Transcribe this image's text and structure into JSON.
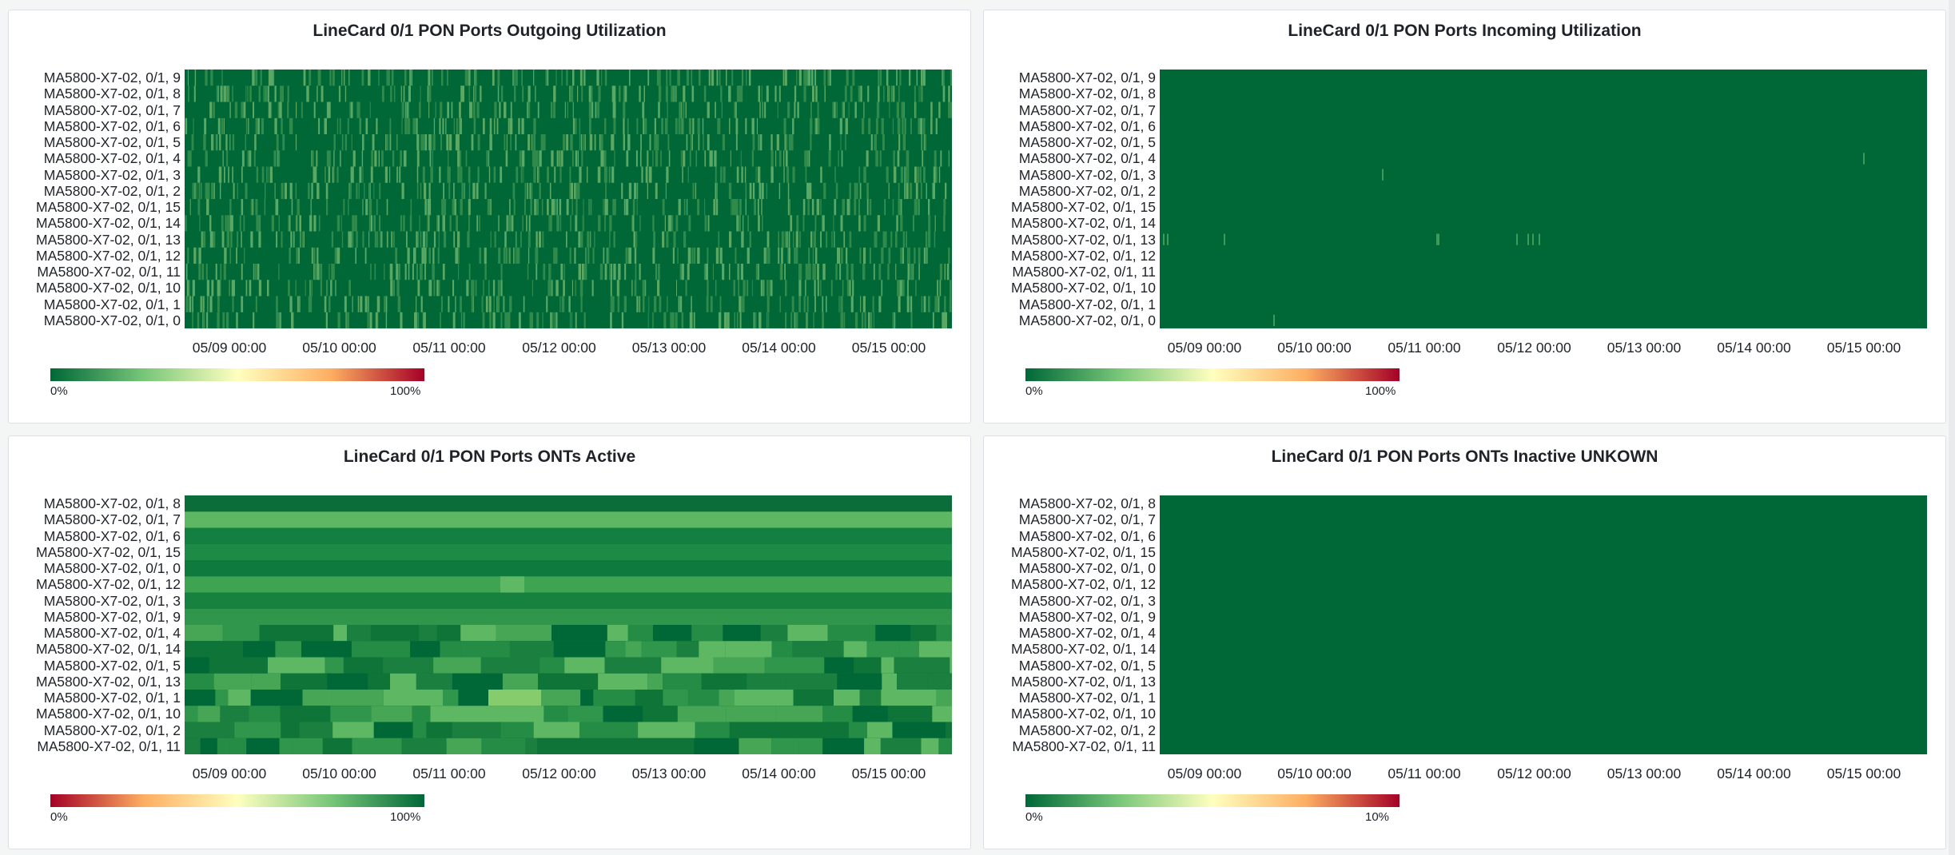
{
  "time_ticks": [
    "05/09 00:00",
    "05/10 00:00",
    "05/11 00:00",
    "05/12 00:00",
    "05/13 00:00",
    "05/14 00:00",
    "05/15 00:00"
  ],
  "colors": {
    "dark_green": "#006837",
    "mid_green": "#1a9641",
    "light_green": "#78c679",
    "yellow": "#ffffbf",
    "orange": "#fdae61",
    "red": "#a50026"
  },
  "panels": [
    {
      "title": "LineCard 0/1 PON Ports Outgoing Utilization",
      "rows": [
        "MA5800-X7-02, 0/1, 9",
        "MA5800-X7-02, 0/1, 8",
        "MA5800-X7-02, 0/1, 7",
        "MA5800-X7-02, 0/1, 6",
        "MA5800-X7-02, 0/1, 5",
        "MA5800-X7-02, 0/1, 4",
        "MA5800-X7-02, 0/1, 3",
        "MA5800-X7-02, 0/1, 2",
        "MA5800-X7-02, 0/1, 15",
        "MA5800-X7-02, 0/1, 14",
        "MA5800-X7-02, 0/1, 13",
        "MA5800-X7-02, 0/1, 12",
        "MA5800-X7-02, 0/1, 11",
        "MA5800-X7-02, 0/1, 10",
        "MA5800-X7-02, 0/1, 1",
        "MA5800-X7-02, 0/1, 0"
      ],
      "legend": {
        "min": "0%",
        "max": "100%",
        "scale": "green-to-red"
      },
      "pattern": "noisy"
    },
    {
      "title": "LineCard 0/1 PON Ports Incoming Utilization",
      "rows": [
        "MA5800-X7-02, 0/1, 9",
        "MA5800-X7-02, 0/1, 8",
        "MA5800-X7-02, 0/1, 7",
        "MA5800-X7-02, 0/1, 6",
        "MA5800-X7-02, 0/1, 5",
        "MA5800-X7-02, 0/1, 4",
        "MA5800-X7-02, 0/1, 3",
        "MA5800-X7-02, 0/1, 2",
        "MA5800-X7-02, 0/1, 15",
        "MA5800-X7-02, 0/1, 14",
        "MA5800-X7-02, 0/1, 13",
        "MA5800-X7-02, 0/1, 12",
        "MA5800-X7-02, 0/1, 11",
        "MA5800-X7-02, 0/1, 10",
        "MA5800-X7-02, 0/1, 1",
        "MA5800-X7-02, 0/1, 0"
      ],
      "legend": {
        "min": "0%",
        "max": "100%",
        "scale": "green-to-red"
      },
      "pattern": "flat"
    },
    {
      "title": "LineCard 0/1 PON Ports ONTs Active",
      "rows": [
        "MA5800-X7-02, 0/1, 8",
        "MA5800-X7-02, 0/1, 7",
        "MA5800-X7-02, 0/1, 6",
        "MA5800-X7-02, 0/1, 15",
        "MA5800-X7-02, 0/1, 0",
        "MA5800-X7-02, 0/1, 12",
        "MA5800-X7-02, 0/1, 3",
        "MA5800-X7-02, 0/1, 9",
        "MA5800-X7-02, 0/1, 4",
        "MA5800-X7-02, 0/1, 14",
        "MA5800-X7-02, 0/1, 5",
        "MA5800-X7-02, 0/1, 13",
        "MA5800-X7-02, 0/1, 1",
        "MA5800-X7-02, 0/1, 10",
        "MA5800-X7-02, 0/1, 2",
        "MA5800-X7-02, 0/1, 11"
      ],
      "legend": {
        "min": "0%",
        "max": "100%",
        "scale": "red-to-green"
      },
      "pattern": "blocky"
    },
    {
      "title": "LineCard 0/1 PON Ports ONTs Inactive UNKOWN",
      "rows": [
        "MA5800-X7-02, 0/1, 8",
        "MA5800-X7-02, 0/1, 7",
        "MA5800-X7-02, 0/1, 6",
        "MA5800-X7-02, 0/1, 15",
        "MA5800-X7-02, 0/1, 0",
        "MA5800-X7-02, 0/1, 12",
        "MA5800-X7-02, 0/1, 3",
        "MA5800-X7-02, 0/1, 9",
        "MA5800-X7-02, 0/1, 4",
        "MA5800-X7-02, 0/1, 14",
        "MA5800-X7-02, 0/1, 5",
        "MA5800-X7-02, 0/1, 13",
        "MA5800-X7-02, 0/1, 1",
        "MA5800-X7-02, 0/1, 10",
        "MA5800-X7-02, 0/1, 2",
        "MA5800-X7-02, 0/1, 11"
      ],
      "legend": {
        "min": "0%",
        "max": "10%",
        "scale": "green-to-red"
      },
      "pattern": "solid"
    }
  ],
  "chart_data": [
    {
      "type": "heatmap",
      "title": "LineCard 0/1 PON Ports Outgoing Utilization",
      "x_range": [
        "05/08",
        "05/15"
      ],
      "value_range": [
        0,
        100
      ],
      "unit": "%"
    },
    {
      "type": "heatmap",
      "title": "LineCard 0/1 PON Ports Incoming Utilization",
      "x_range": [
        "05/08",
        "05/15"
      ],
      "value_range": [
        0,
        100
      ],
      "unit": "%"
    },
    {
      "type": "heatmap",
      "title": "LineCard 0/1 PON Ports ONTs Active",
      "x_range": [
        "05/08",
        "05/15"
      ],
      "value_range": [
        0,
        100
      ],
      "unit": "%"
    },
    {
      "type": "heatmap",
      "title": "LineCard 0/1 PON Ports ONTs Inactive UNKOWN",
      "x_range": [
        "05/08",
        "05/15"
      ],
      "value_range": [
        0,
        10
      ],
      "unit": "%"
    }
  ]
}
